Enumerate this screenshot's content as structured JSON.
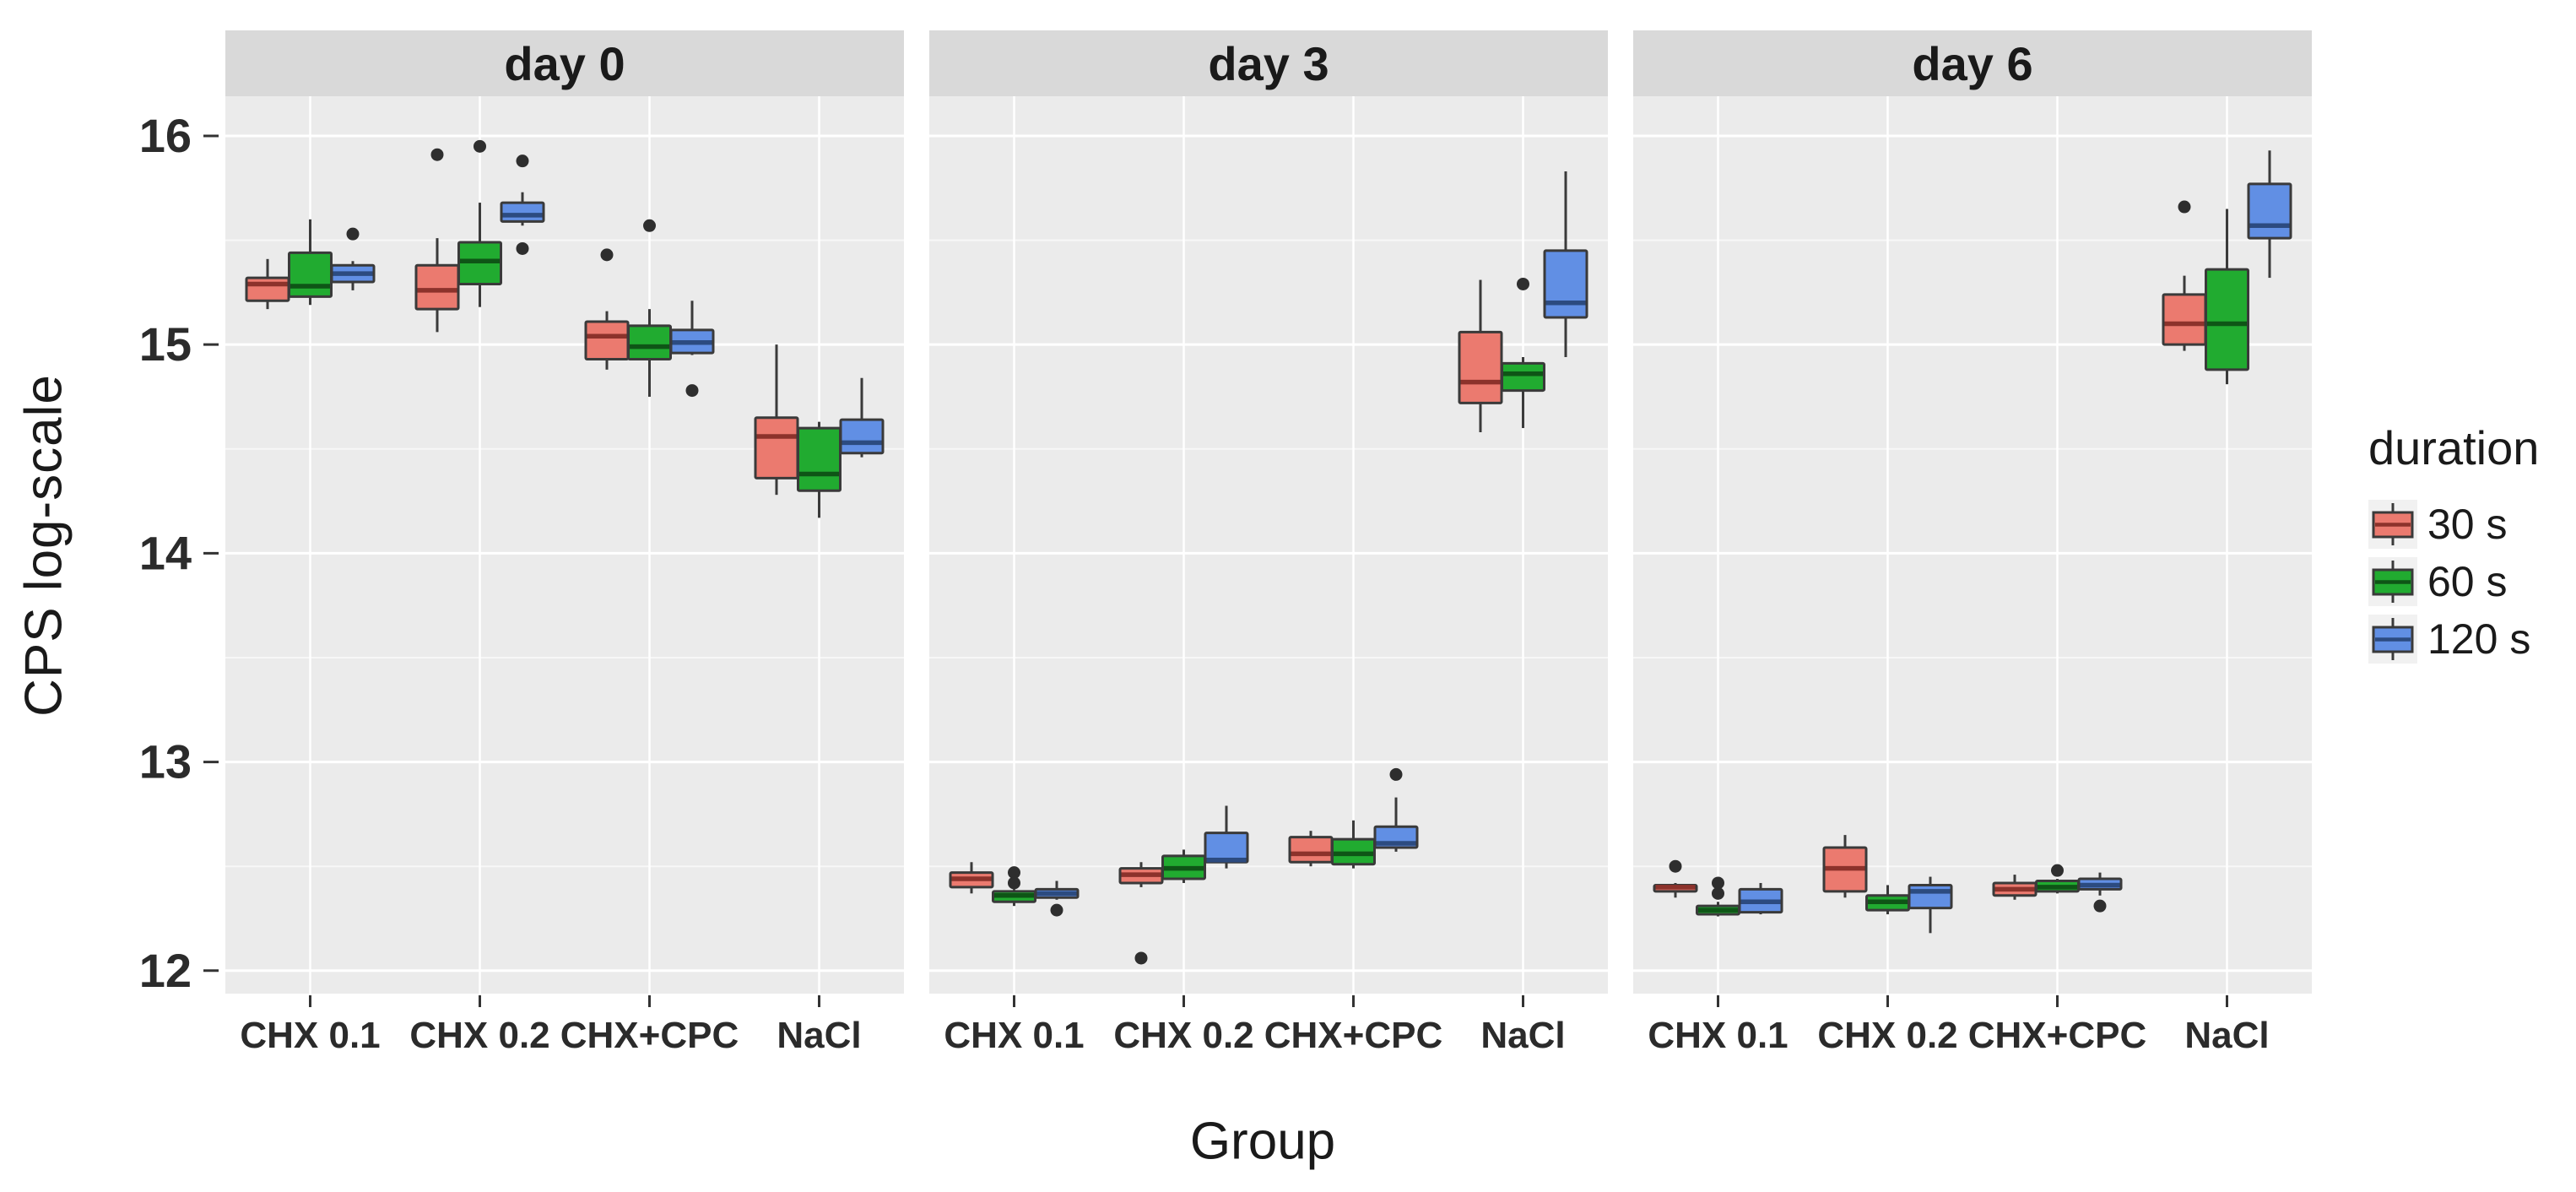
{
  "axis": {
    "ylabel": "CPS log-scale",
    "xlabel": "Group"
  },
  "legend": {
    "title": "duration",
    "entries": [
      {
        "label": "30 s",
        "fill": "#EB7A6F",
        "median": "#8C322B"
      },
      {
        "label": "60 s",
        "fill": "#21AB30",
        "median": "#0E5516"
      },
      {
        "label": "120 s",
        "fill": "#618FE4",
        "median": "#2C4B80"
      }
    ]
  },
  "style": {
    "panel_bg": "#EBEBEB",
    "strip_bg": "#D9D9D9",
    "grid_major": "#FFFFFF",
    "grid_minor": "rgba(255,255,255,0.62)",
    "box_border": "#3A3A3A",
    "whisker": "#3A3A3A",
    "outlier": "#2E2E2E",
    "strip_text": "#1A1A1A",
    "tick_text": "#2B2B2B"
  },
  "chart_data": {
    "type": "boxplot",
    "title": "",
    "ylabel": "CPS log-scale",
    "xlabel": "Group",
    "ylim": [
      11.89,
      16.19
    ],
    "yticks": [
      12,
      13,
      14,
      15,
      16
    ],
    "yticks_minor": [
      12.5,
      13.5,
      14.5,
      15.5
    ],
    "grid": true,
    "legend_position": "right",
    "durations": [
      "30 s",
      "60 s",
      "120 s"
    ],
    "box_stats_order": [
      "whisker_low",
      "q1",
      "median",
      "q3",
      "whisker_high"
    ],
    "facets": [
      {
        "label": "day 0",
        "groups": [
          {
            "name": "CHX 0.1",
            "boxes": [
              [
                15.17,
                15.21,
                15.29,
                15.32,
                15.41
              ],
              [
                15.19,
                15.23,
                15.28,
                15.44,
                15.6
              ],
              [
                15.26,
                15.3,
                15.34,
                15.38,
                15.4
              ]
            ],
            "outliers": [
              [],
              [],
              [
                15.53
              ]
            ]
          },
          {
            "name": "CHX 0.2",
            "boxes": [
              [
                15.06,
                15.17,
                15.26,
                15.38,
                15.51
              ],
              [
                15.18,
                15.29,
                15.4,
                15.49,
                15.68
              ],
              [
                15.57,
                15.59,
                15.62,
                15.68,
                15.73
              ]
            ],
            "outliers": [
              [
                15.91
              ],
              [
                15.95
              ],
              [
                15.88,
                15.46
              ]
            ]
          },
          {
            "name": "CHX+CPC",
            "boxes": [
              [
                14.88,
                14.93,
                15.04,
                15.11,
                15.16
              ],
              [
                14.75,
                14.93,
                14.99,
                15.09,
                15.17
              ],
              [
                14.95,
                14.96,
                15.01,
                15.07,
                15.21
              ]
            ],
            "outliers": [
              [
                15.43
              ],
              [
                15.57
              ],
              [
                14.78
              ]
            ]
          },
          {
            "name": "NaCl",
            "boxes": [
              [
                14.28,
                14.36,
                14.56,
                14.65,
                15.0
              ],
              [
                14.17,
                14.3,
                14.38,
                14.6,
                14.63
              ],
              [
                14.46,
                14.48,
                14.53,
                14.64,
                14.84
              ]
            ],
            "outliers": [
              [],
              [],
              []
            ]
          }
        ]
      },
      {
        "label": "day 3",
        "groups": [
          {
            "name": "CHX 0.1",
            "boxes": [
              [
                12.37,
                12.4,
                12.44,
                12.47,
                12.52
              ],
              [
                12.31,
                12.33,
                12.36,
                12.38,
                12.39
              ],
              [
                12.34,
                12.35,
                12.37,
                12.39,
                12.43
              ]
            ],
            "outliers": [
              [],
              [
                12.47,
                12.42
              ],
              [
                12.29
              ]
            ]
          },
          {
            "name": "CHX 0.2",
            "boxes": [
              [
                12.4,
                12.42,
                12.46,
                12.49,
                12.52
              ],
              [
                12.42,
                12.44,
                12.49,
                12.55,
                12.58
              ],
              [
                12.49,
                12.52,
                12.53,
                12.66,
                12.79
              ]
            ],
            "outliers": [
              [
                12.06
              ],
              [],
              []
            ]
          },
          {
            "name": "CHX+CPC",
            "boxes": [
              [
                12.5,
                12.52,
                12.56,
                12.64,
                12.67
              ],
              [
                12.49,
                12.51,
                12.56,
                12.63,
                12.72
              ],
              [
                12.57,
                12.59,
                12.61,
                12.69,
                12.83
              ]
            ],
            "outliers": [
              [],
              [],
              [
                12.94
              ]
            ]
          },
          {
            "name": "NaCl",
            "boxes": [
              [
                14.58,
                14.72,
                14.82,
                15.06,
                15.31
              ],
              [
                14.6,
                14.78,
                14.86,
                14.91,
                14.94
              ],
              [
                14.94,
                15.13,
                15.2,
                15.45,
                15.83
              ]
            ],
            "outliers": [
              [],
              [
                15.29
              ],
              []
            ]
          }
        ]
      },
      {
        "label": "day 6",
        "groups": [
          {
            "name": "CHX 0.1",
            "boxes": [
              [
                12.35,
                12.38,
                12.4,
                12.41,
                12.42
              ],
              [
                12.26,
                12.27,
                12.29,
                12.31,
                12.33
              ],
              [
                12.27,
                12.28,
                12.33,
                12.39,
                12.42
              ]
            ],
            "outliers": [
              [
                12.5
              ],
              [
                12.42,
                12.37
              ],
              []
            ]
          },
          {
            "name": "CHX 0.2",
            "boxes": [
              [
                12.35,
                12.38,
                12.49,
                12.59,
                12.65
              ],
              [
                12.27,
                12.29,
                12.33,
                12.36,
                12.41
              ],
              [
                12.18,
                12.3,
                12.38,
                12.41,
                12.45
              ]
            ],
            "outliers": [
              [],
              [],
              []
            ]
          },
          {
            "name": "CHX+CPC",
            "boxes": [
              [
                12.34,
                12.36,
                12.39,
                12.42,
                12.46
              ],
              [
                12.37,
                12.38,
                12.4,
                12.43,
                12.44
              ],
              [
                12.36,
                12.39,
                12.41,
                12.44,
                12.47
              ]
            ],
            "outliers": [
              [],
              [
                12.48
              ],
              [
                12.31
              ]
            ]
          },
          {
            "name": "NaCl",
            "boxes": [
              [
                14.97,
                15.0,
                15.1,
                15.24,
                15.33
              ],
              [
                14.81,
                14.88,
                15.1,
                15.36,
                15.65
              ],
              [
                15.32,
                15.51,
                15.57,
                15.77,
                15.93
              ]
            ],
            "outliers": [
              [
                15.66
              ],
              [],
              []
            ]
          }
        ]
      }
    ]
  }
}
